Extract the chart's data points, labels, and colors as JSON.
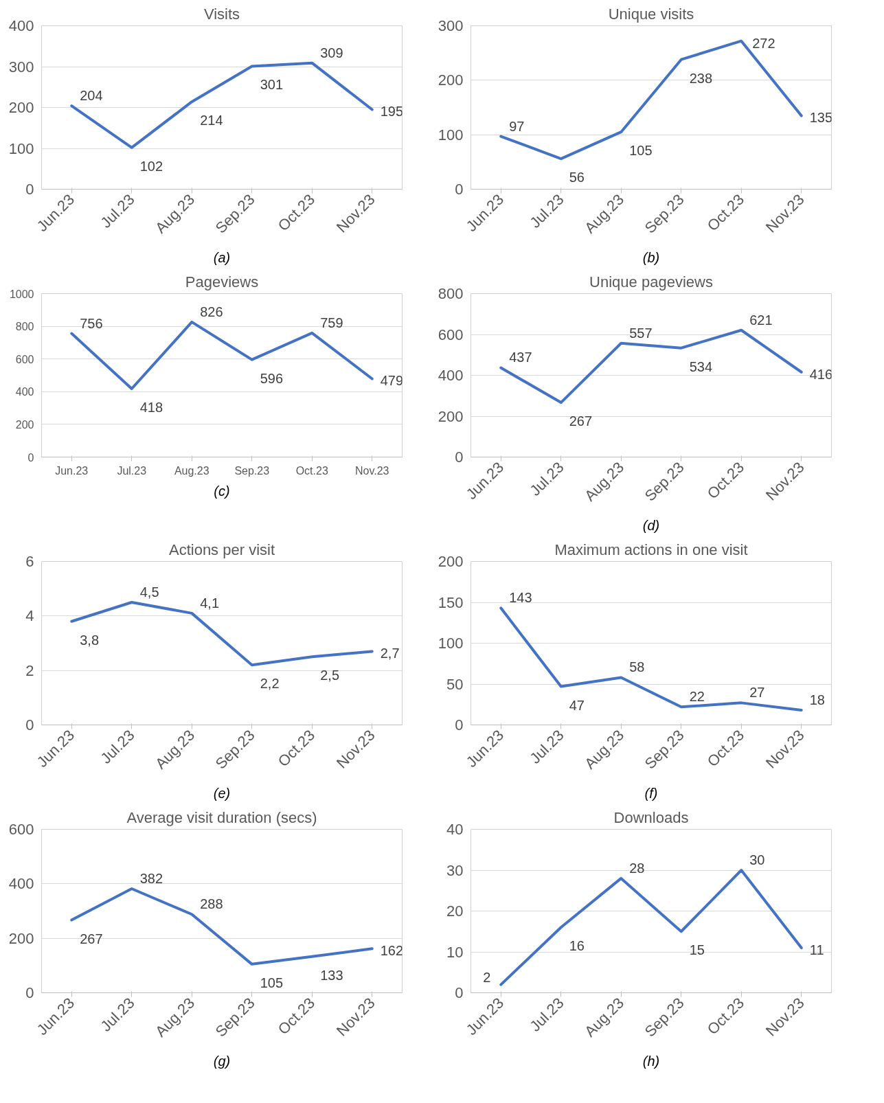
{
  "chart_data": [
    {
      "type": "line",
      "title": "Visits",
      "categories": [
        "Jun.23",
        "Jul.23",
        "Aug.23",
        "Sep.23",
        "Oct.23",
        "Nov.23"
      ],
      "values": [
        204,
        102,
        214,
        301,
        309,
        195
      ],
      "color": "#4472c4",
      "ylim": [
        0,
        400
      ],
      "yticks": [
        0,
        100,
        200,
        300,
        400
      ],
      "grid": "y",
      "data_labels": true,
      "annotations": [
        "(a)"
      ]
    },
    {
      "type": "line",
      "title": "Unique visits",
      "categories": [
        "Jun.23",
        "Jul.23",
        "Aug.23",
        "Sep.23",
        "Oct.23",
        "Nov.23"
      ],
      "values": [
        97,
        56,
        105,
        238,
        272,
        135
      ],
      "color": "#4472c4",
      "ylim": [
        0,
        300
      ],
      "yticks": [
        0,
        100,
        200,
        300
      ],
      "grid": "y",
      "data_labels": true,
      "annotations": [
        "(b)"
      ]
    },
    {
      "type": "line",
      "title": "Pageviews",
      "categories": [
        "Jun.23",
        "Jul.23",
        "Aug.23",
        "Sep.23",
        "Oct.23",
        "Nov.23"
      ],
      "values": [
        756,
        418,
        826,
        596,
        759,
        479
      ],
      "color": "#4472c4",
      "ylim": [
        0,
        1000
      ],
      "yticks": [
        0,
        200,
        400,
        600,
        800,
        1000
      ],
      "grid": "y",
      "data_labels": true,
      "annotations": [
        "(c)"
      ]
    },
    {
      "type": "line",
      "title": "Unique pageviews",
      "categories": [
        "Jun.23",
        "Jul.23",
        "Aug.23",
        "Sep.23",
        "Oct.23",
        "Nov.23"
      ],
      "values": [
        437,
        267,
        557,
        534,
        621,
        416
      ],
      "color": "#4472c4",
      "ylim": [
        0,
        800
      ],
      "yticks": [
        0,
        200,
        400,
        600,
        800
      ],
      "grid": "y",
      "data_labels": true,
      "annotations": [
        "(d)"
      ]
    },
    {
      "type": "line",
      "title": "Actions per visit",
      "categories": [
        "Jun.23",
        "Jul.23",
        "Aug.23",
        "Sep.23",
        "Oct.23",
        "Nov.23"
      ],
      "values": [
        3.8,
        4.5,
        4.1,
        2.2,
        2.5,
        2.7
      ],
      "value_labels": [
        "3,8",
        "4,5",
        "4,1",
        "2,2",
        "2,5",
        "2,7"
      ],
      "color": "#4472c4",
      "ylim": [
        0,
        6
      ],
      "yticks": [
        0,
        2,
        4,
        6
      ],
      "grid": "y",
      "annotations": [
        "(e)"
      ]
    },
    {
      "type": "line",
      "title": "Maximum actions in one visit",
      "categories": [
        "Jun.23",
        "Jul.23",
        "Aug.23",
        "Sep.23",
        "Oct.23",
        "Nov.23"
      ],
      "values": [
        143,
        47,
        58,
        22,
        27,
        18
      ],
      "color": "#4472c4",
      "ylim": [
        0,
        200
      ],
      "yticks": [
        0,
        50,
        100,
        150,
        200
      ],
      "grid": "y",
      "data_labels": true,
      "annotations": [
        "(f)"
      ]
    },
    {
      "type": "line",
      "title": "Average visit duration (secs)",
      "categories": [
        "Jun.23",
        "Jul.23",
        "Aug.23",
        "Sep.23",
        "Oct.23",
        "Nov.23"
      ],
      "values": [
        267,
        382,
        288,
        105,
        133,
        162
      ],
      "color": "#4472c4",
      "ylim": [
        0,
        600
      ],
      "yticks": [
        0,
        200,
        400,
        600
      ],
      "grid": "y",
      "data_labels": true,
      "annotations": [
        "(g)"
      ]
    },
    {
      "type": "line",
      "title": "Downloads",
      "categories": [
        "Jun.23",
        "Jul.23",
        "Aug.23",
        "Sep.23",
        "Oct.23",
        "Nov.23"
      ],
      "values": [
        2,
        16,
        28,
        15,
        30,
        11
      ],
      "color": "#4472c4",
      "ylim": [
        0,
        40
      ],
      "yticks": [
        0,
        10,
        20,
        30,
        40
      ],
      "grid": "y",
      "data_labels": true,
      "annotations": [
        "(h)"
      ]
    }
  ]
}
